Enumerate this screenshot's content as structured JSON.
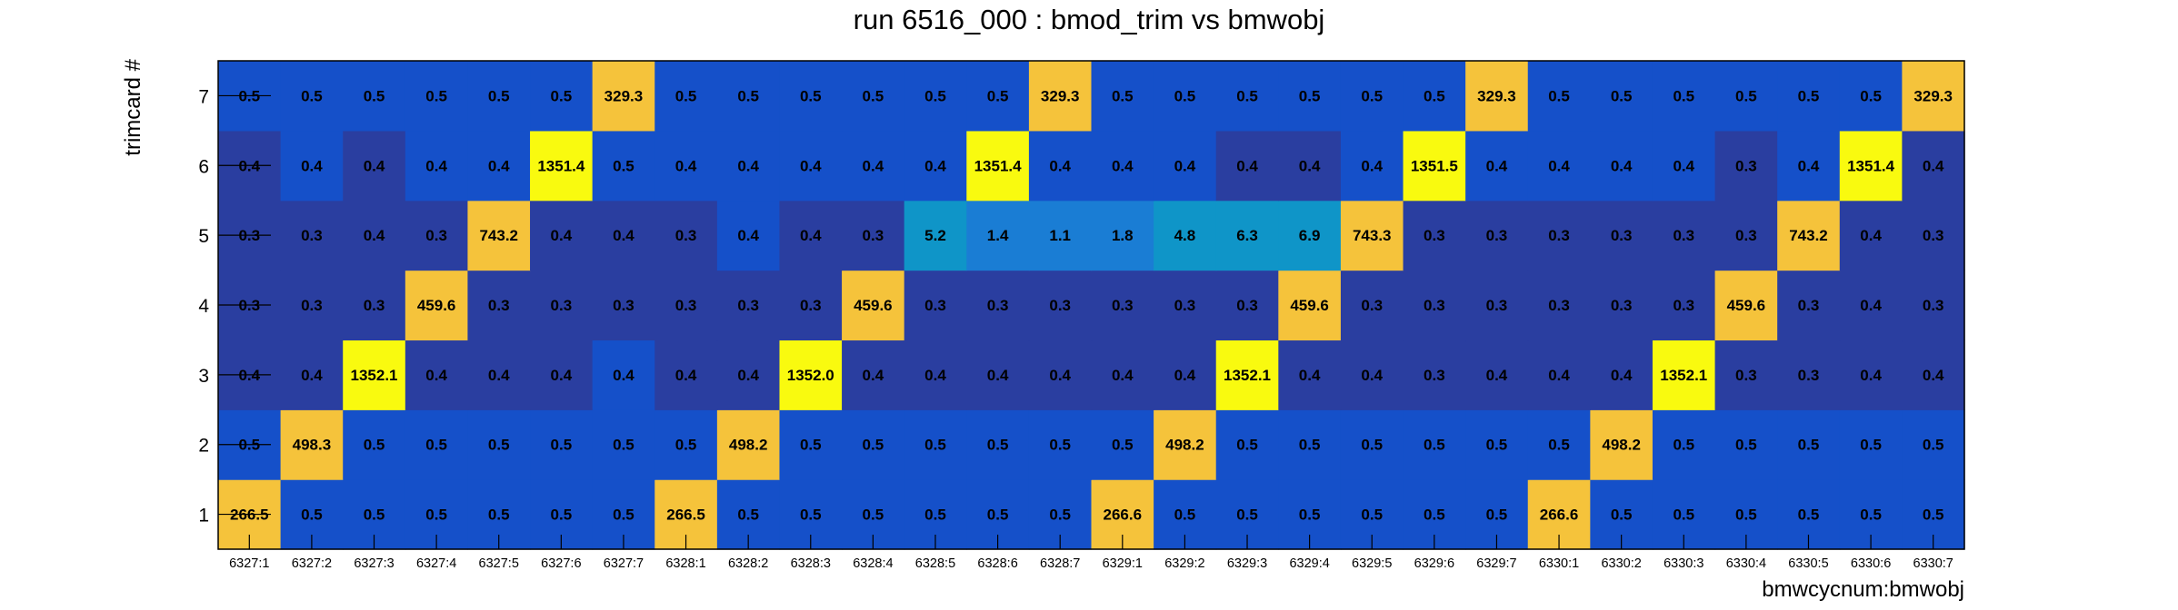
{
  "chart_data": {
    "type": "heatmap",
    "title": "run 6516_000 : bmod_trim vs bmwobj",
    "xlabel": "bmwcycnum:bmwobj",
    "ylabel": "trimcard #",
    "x_categories": [
      "6327:1",
      "6327:2",
      "6327:3",
      "6327:4",
      "6327:5",
      "6327:6",
      "6327:7",
      "6328:1",
      "6328:2",
      "6328:3",
      "6328:4",
      "6328:5",
      "6328:6",
      "6328:7",
      "6329:1",
      "6329:2",
      "6329:3",
      "6329:4",
      "6329:5",
      "6329:6",
      "6329:7",
      "6330:1",
      "6330:2",
      "6330:3",
      "6330:4",
      "6330:5",
      "6330:6",
      "6330:7"
    ],
    "y_categories": [
      "1",
      "2",
      "3",
      "4",
      "5",
      "6",
      "7"
    ],
    "values": [
      [
        "266.5",
        "0.5",
        "0.5",
        "0.5",
        "0.5",
        "0.5",
        "0.5",
        "266.5",
        "0.5",
        "0.5",
        "0.5",
        "0.5",
        "0.5",
        "0.5",
        "266.6",
        "0.5",
        "0.5",
        "0.5",
        "0.5",
        "0.5",
        "0.5",
        "266.6",
        "0.5",
        "0.5",
        "0.5",
        "0.5",
        "0.5",
        "0.5"
      ],
      [
        "0.5",
        "498.3",
        "0.5",
        "0.5",
        "0.5",
        "0.5",
        "0.5",
        "0.5",
        "498.2",
        "0.5",
        "0.5",
        "0.5",
        "0.5",
        "0.5",
        "0.5",
        "498.2",
        "0.5",
        "0.5",
        "0.5",
        "0.5",
        "0.5",
        "0.5",
        "498.2",
        "0.5",
        "0.5",
        "0.5",
        "0.5",
        "0.5"
      ],
      [
        "0.4",
        "0.4",
        "1352.1",
        "0.4",
        "0.4",
        "0.4",
        "0.4",
        "0.4",
        "0.4",
        "1352.0",
        "0.4",
        "0.4",
        "0.4",
        "0.4",
        "0.4",
        "0.4",
        "1352.1",
        "0.4",
        "0.4",
        "0.3",
        "0.4",
        "0.4",
        "0.4",
        "1352.1",
        "0.3",
        "0.3",
        "0.4",
        "0.4"
      ],
      [
        "0.3",
        "0.3",
        "0.3",
        "459.6",
        "0.3",
        "0.3",
        "0.3",
        "0.3",
        "0.3",
        "0.3",
        "459.6",
        "0.3",
        "0.3",
        "0.3",
        "0.3",
        "0.3",
        "0.3",
        "459.6",
        "0.3",
        "0.3",
        "0.3",
        "0.3",
        "0.3",
        "0.3",
        "459.6",
        "0.3",
        "0.4",
        "0.3"
      ],
      [
        "0.3",
        "0.3",
        "0.4",
        "0.3",
        "743.2",
        "0.4",
        "0.4",
        "0.3",
        "0.4",
        "0.4",
        "0.3",
        "5.2",
        "1.4",
        "1.1",
        "1.8",
        "4.8",
        "6.3",
        "6.9",
        "743.3",
        "0.3",
        "0.3",
        "0.3",
        "0.3",
        "0.3",
        "0.3",
        "743.2",
        "0.4",
        "0.3"
      ],
      [
        "0.4",
        "0.4",
        "0.4",
        "0.4",
        "0.4",
        "1351.4",
        "0.5",
        "0.4",
        "0.4",
        "0.4",
        "0.4",
        "0.4",
        "1351.4",
        "0.4",
        "0.4",
        "0.4",
        "0.4",
        "0.4",
        "0.4",
        "1351.5",
        "0.4",
        "0.4",
        "0.4",
        "0.4",
        "0.3",
        "0.4",
        "1351.4",
        "0.4"
      ],
      [
        "0.5",
        "0.5",
        "0.5",
        "0.5",
        "0.5",
        "0.5",
        "329.3",
        "0.5",
        "0.5",
        "0.5",
        "0.5",
        "0.5",
        "0.5",
        "329.3",
        "0.5",
        "0.5",
        "0.5",
        "0.5",
        "0.5",
        "0.5",
        "329.3",
        "0.5",
        "0.5",
        "0.5",
        "0.5",
        "0.5",
        "0.5",
        "329.3"
      ]
    ],
    "colors": {
      "low": "#2a3ea0",
      "mid": "#1550c9",
      "teal": "#0f95c8",
      "sky": "#1a7dd4",
      "orange": "#f5c33b",
      "yellow": "#f9fa0f",
      "frame": "#000000"
    },
    "grid": false,
    "legend": "none"
  }
}
